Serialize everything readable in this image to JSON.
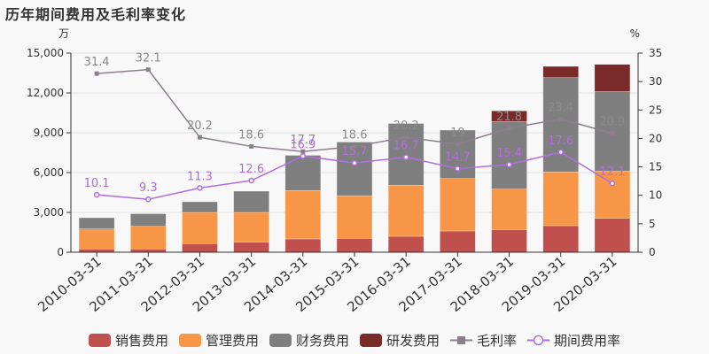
{
  "title": "历年期间费用及毛利率变化",
  "chart_data": {
    "type": "bar",
    "stacked": true,
    "categories": [
      "2010-03-31",
      "2011-03-31",
      "2012-03-31",
      "2013-03-31",
      "2014-03-31",
      "2015-03-31",
      "2016-03-31",
      "2017-03-31",
      "2018-03-31",
      "2019-03-31",
      "2020-03-31"
    ],
    "left_axis": {
      "unit": "万",
      "min": 0,
      "max": 15000,
      "ticks": [
        "0",
        "3,000",
        "6,000",
        "9,000",
        "12,000",
        "15,000"
      ]
    },
    "right_axis": {
      "unit": "%",
      "min": 0,
      "max": 35,
      "ticks": [
        "0",
        "5",
        "10",
        "15",
        "20",
        "25",
        "30",
        "35"
      ]
    },
    "series": [
      {
        "name": "销售费用",
        "type": "bar",
        "color": "#c0504d",
        "values": [
          250,
          250,
          650,
          750,
          1000,
          1050,
          1200,
          1600,
          1700,
          2000,
          2550
        ]
      },
      {
        "name": "管理费用",
        "type": "bar",
        "color": "#f79646",
        "values": [
          1500,
          1700,
          2350,
          2250,
          3650,
          3200,
          3850,
          3950,
          3050,
          4050,
          3550
        ]
      },
      {
        "name": "财务费用",
        "type": "bar",
        "color": "#7f7f7f",
        "values": [
          850,
          950,
          800,
          1600,
          2650,
          4050,
          4650,
          3650,
          5100,
          7100,
          6000
        ]
      },
      {
        "name": "研发费用",
        "type": "bar",
        "color": "#7b2a2a",
        "values": [
          0,
          0,
          0,
          0,
          0,
          0,
          0,
          0,
          800,
          850,
          2050
        ]
      },
      {
        "name": "毛利率",
        "type": "line",
        "axis": "right",
        "color": "#8c7f8c",
        "marker": "square",
        "values": [
          31.4,
          32.1,
          20.2,
          18.6,
          17.7,
          18.6,
          20.2,
          19,
          21.8,
          23.4,
          20.9
        ],
        "labels": [
          "31.4",
          "32.1",
          "20.2",
          "18.6",
          "17.7",
          "18.6",
          "20.2",
          "19",
          "21.8",
          "23.4",
          "20.9"
        ]
      },
      {
        "name": "期间费用率",
        "type": "line",
        "axis": "right",
        "color": "#b06ee0",
        "marker": "circle",
        "values": [
          10.1,
          9.3,
          11.3,
          12.6,
          16.9,
          15.7,
          16.7,
          14.7,
          15.4,
          17.6,
          12.1
        ],
        "labels": [
          "10.1",
          "9.3",
          "11.3",
          "12.6",
          "16.9",
          "15.7",
          "16.7",
          "14.7",
          "15.4",
          "17.6",
          "12.1"
        ]
      }
    ]
  }
}
